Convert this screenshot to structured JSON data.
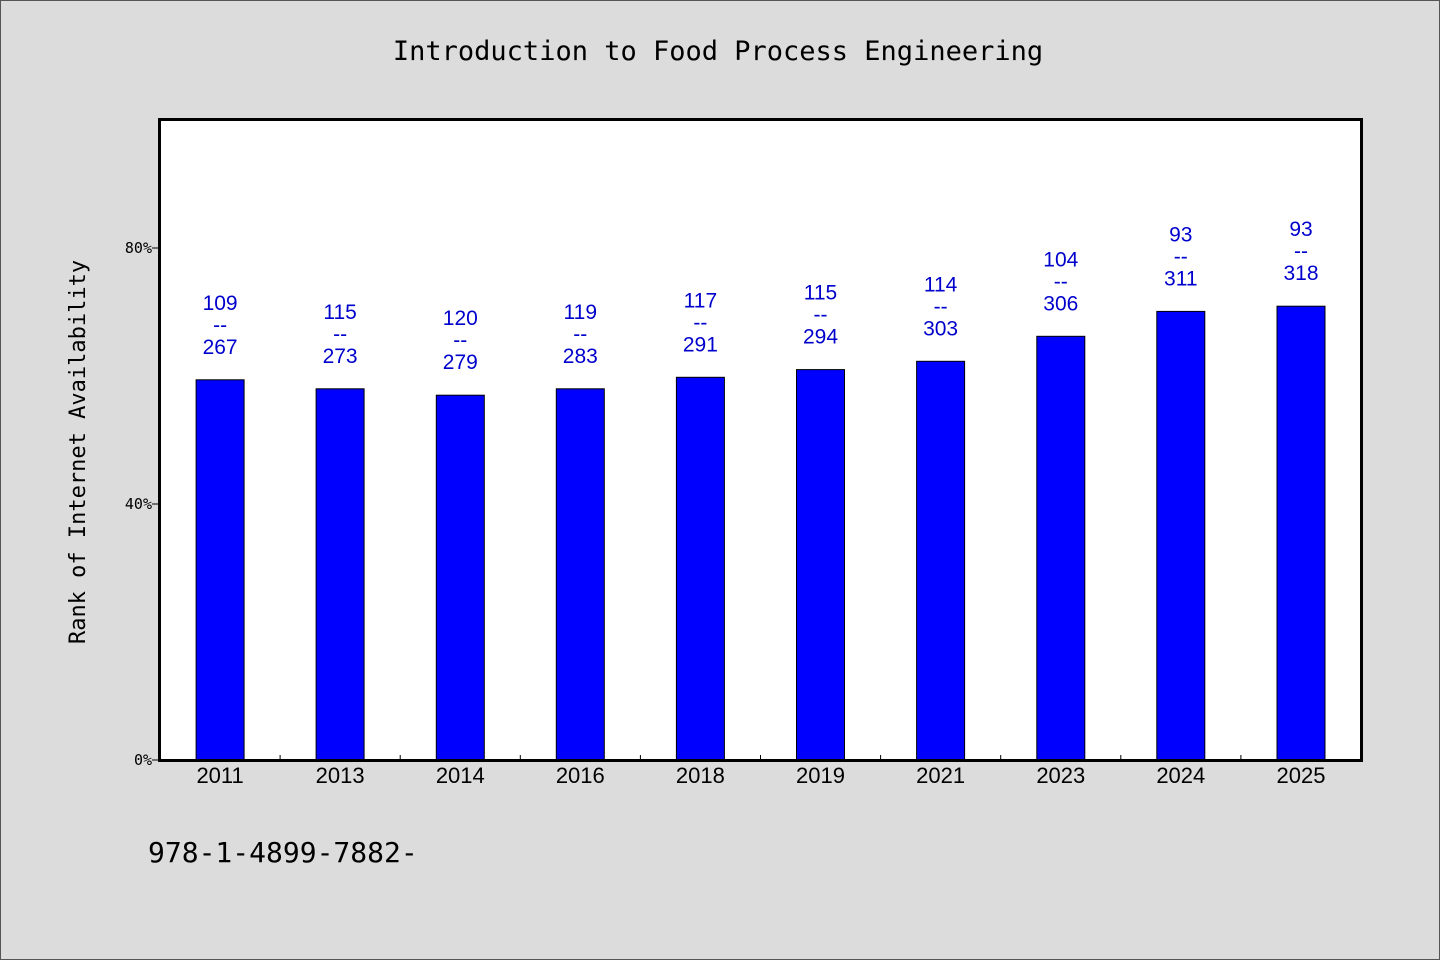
{
  "chart_data": {
    "type": "bar",
    "title": "Introduction to Food Process Engineering",
    "ylabel": "Rank of Internet Availability",
    "xlabel": "",
    "categories": [
      "2011",
      "2013",
      "2014",
      "2016",
      "2018",
      "2019",
      "2021",
      "2023",
      "2024",
      "2025"
    ],
    "values": [
      59.4,
      58.0,
      57.0,
      58.0,
      59.8,
      61.0,
      62.3,
      66.2,
      70.1,
      70.9
    ],
    "value_unit": "%",
    "ylim": [
      0,
      100
    ],
    "yticks": [
      0,
      40,
      80
    ],
    "ytick_labels": [
      "0%",
      "40%",
      "80%"
    ],
    "bar_labels": [
      {
        "rank": "109",
        "sep": "--",
        "total": "267"
      },
      {
        "rank": "115",
        "sep": "--",
        "total": "273"
      },
      {
        "rank": "120",
        "sep": "--",
        "total": "279"
      },
      {
        "rank": "119",
        "sep": "--",
        "total": "283"
      },
      {
        "rank": "117",
        "sep": "--",
        "total": "291"
      },
      {
        "rank": "115",
        "sep": "--",
        "total": "294"
      },
      {
        "rank": "114",
        "sep": "--",
        "total": "303"
      },
      {
        "rank": "104",
        "sep": "--",
        "total": "306"
      },
      {
        "rank": "93",
        "sep": "--",
        "total": "311"
      },
      {
        "rank": "93",
        "sep": "--",
        "total": "318"
      }
    ],
    "grid": false,
    "legend": "none",
    "bar_color": "#0000ff",
    "label_color": "#0000cc",
    "plot_background": "#ffffff",
    "page_background": "#dcdcdc"
  },
  "footnote": "978-1-4899-7882-"
}
